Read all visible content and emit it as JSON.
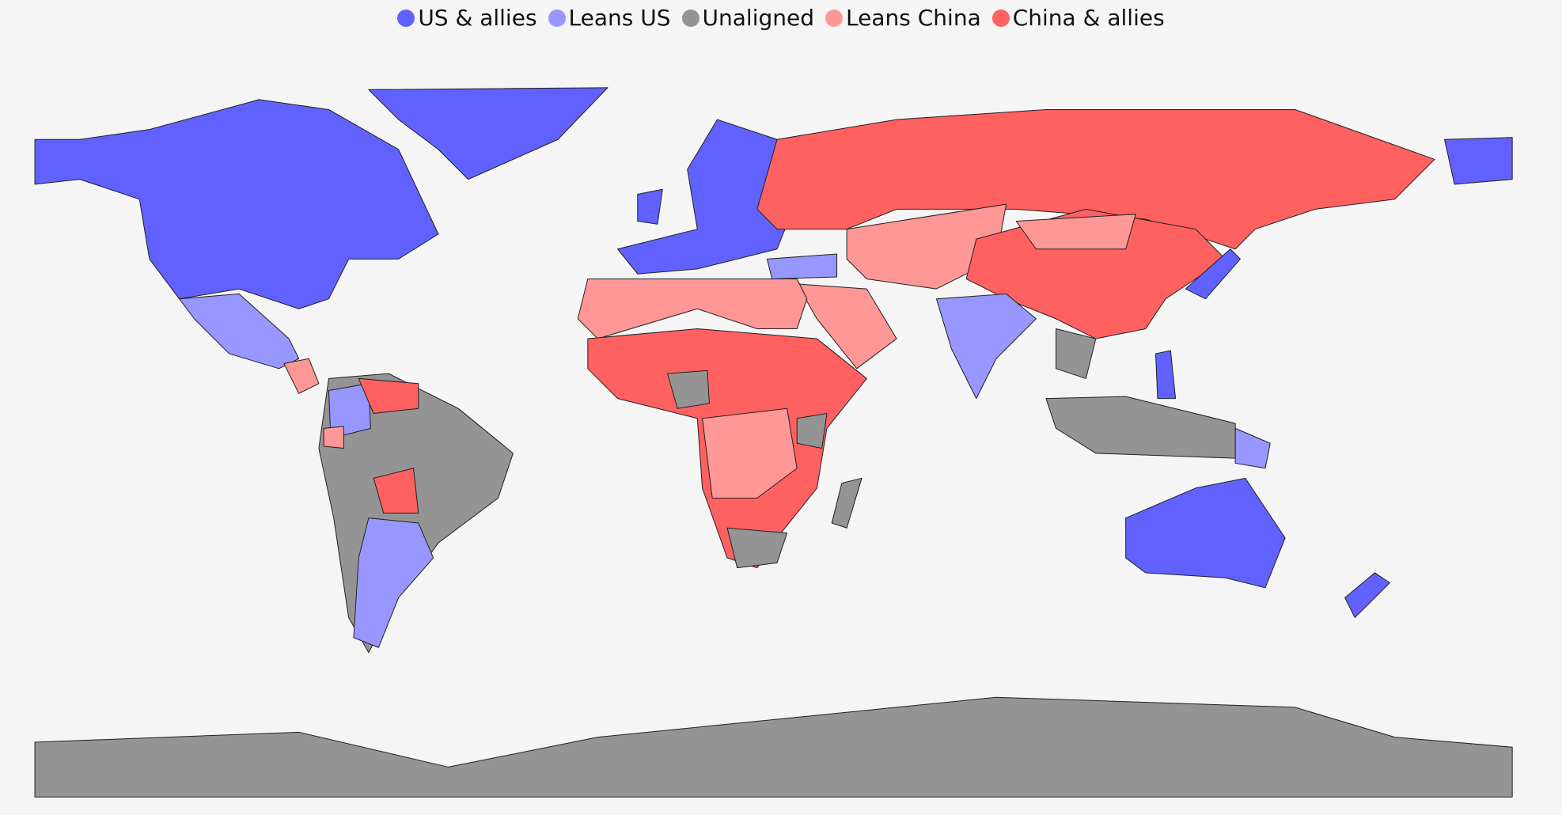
{
  "legend": {
    "items": [
      {
        "label": "US & allies",
        "color": "#6161ff"
      },
      {
        "label": "Leans US",
        "color": "#9797ff"
      },
      {
        "label": "Unaligned",
        "color": "#949494"
      },
      {
        "label": "Leans China",
        "color": "#ff9797"
      },
      {
        "label": "China & allies",
        "color": "#ff6161"
      }
    ]
  },
  "map": {
    "projection": "equirectangular",
    "border_color": "#222222",
    "background": "#f5f5f5"
  }
}
